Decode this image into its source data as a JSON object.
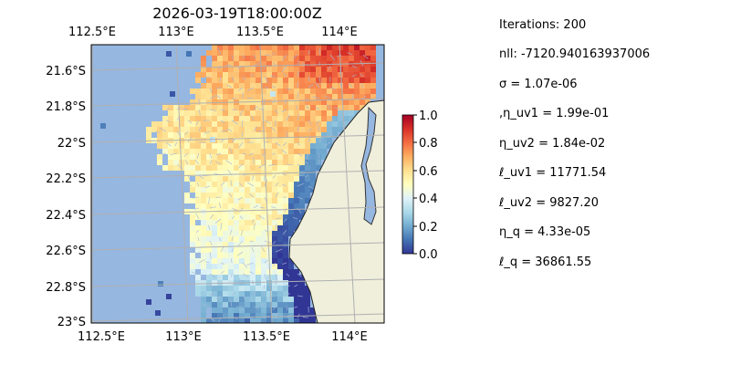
{
  "map": {
    "title": "2026-03-19T18:00:00Z",
    "lon_top_labels": [
      "112.5°E",
      "113°E",
      "113.5°E",
      "114°E"
    ],
    "lon_bottom_labels": [
      "112.5°E",
      "113°E",
      "113.5°E",
      "114°E"
    ],
    "lat_labels": [
      "21.6°S",
      "21.8°S",
      "22°S",
      "22.2°S",
      "22.4°S",
      "22.6°S",
      "22.8°S",
      "23°S"
    ],
    "colors": {
      "ocean": "#96b7e0",
      "land": "#efefdc",
      "coastline": "#222222",
      "gridline": "#b0b0b0",
      "arrow": "#a9b8d8"
    },
    "field_colormap": "RdYlBu_r"
  },
  "colorbar": {
    "range": [
      0,
      1
    ],
    "ticks": [
      "0.0",
      "0.2",
      "0.4",
      "0.6",
      "0.8",
      "1.0"
    ]
  },
  "params": {
    "iterations": "Iterations: 200",
    "nll": "nll: -7120.940163937006",
    "sigma": "σ = 1.07e-06",
    "eta_uv1": ",η_uv1 = 1.99e-01",
    "eta_uv2": "η_uv2 = 1.84e-02",
    "ell_uv1": "ℓ_uv1 = 11771.54",
    "ell_uv2": "ℓ_uv2 = 9827.20",
    "eta_q": "η_q = 4.33e-05",
    "ell_q": "ℓ_q = 36861.55"
  }
}
